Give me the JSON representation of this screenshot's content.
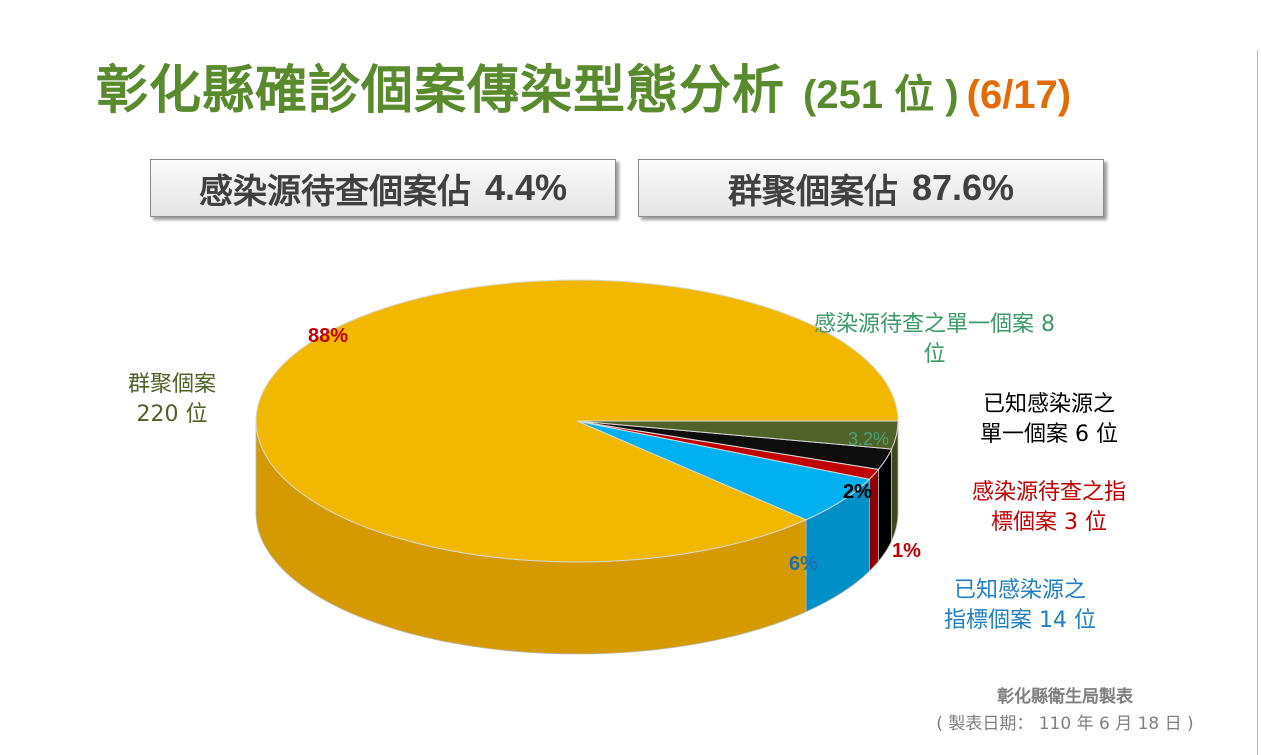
{
  "title": {
    "main": "彰化縣確診個案傳染型態分析",
    "count": "(251 位 )",
    "date": "(6/17)"
  },
  "summary": {
    "unknown_source": {
      "label": "感染源待查個案佔",
      "value": "4.4%"
    },
    "cluster": {
      "label": "群聚個案佔",
      "value": "87.6%"
    }
  },
  "chart_data": {
    "type": "pie",
    "style": "3d",
    "start_angle": "right",
    "slices": [
      {
        "key": "cluster",
        "label_line1": "群聚個案",
        "label_line2": "220 位",
        "value": 220,
        "percent_label": "88%",
        "color": "#f2b800",
        "side_color": "#d49a00",
        "label_color": "#4f6228",
        "pct_color": "#c00000"
      },
      {
        "key": "known_index",
        "label_line1": "已知感染源之",
        "label_line2": "指標個案 14 位",
        "value": 14,
        "percent_label": "6%",
        "color": "#00b0f0",
        "side_color": "#0090c8",
        "label_color": "#1f7fc0",
        "pct_color": "#1f6fae"
      },
      {
        "key": "unknown_index",
        "label_line1": "感染源待查之指",
        "label_line2": "標個案 3 位",
        "value": 3,
        "percent_label": "1%",
        "color": "#c00000",
        "side_color": "#8e0000",
        "label_color": "#c00000",
        "pct_color": "#c00000"
      },
      {
        "key": "known_single",
        "label_line1": "已知感染源之",
        "label_line2": "單一個案 6 位",
        "value": 6,
        "percent_label": "2%",
        "color": "#0d0d0d",
        "side_color": "#000000",
        "label_color": "#000000",
        "pct_color": "#000000"
      },
      {
        "key": "unknown_single",
        "label_line1": "感染源待查之單一個案 8",
        "label_line2": "位",
        "value": 8,
        "percent_label": "3.2%",
        "color": "#4f6228",
        "side_color": "#3a4a1c",
        "label_color": "#3c9a6a",
        "pct_color": "#4aa078"
      }
    ]
  },
  "footer": {
    "line1": "彰化縣衛生局製表",
    "line2": "( 製表日期： 110 年 6 月 18 日 )"
  }
}
